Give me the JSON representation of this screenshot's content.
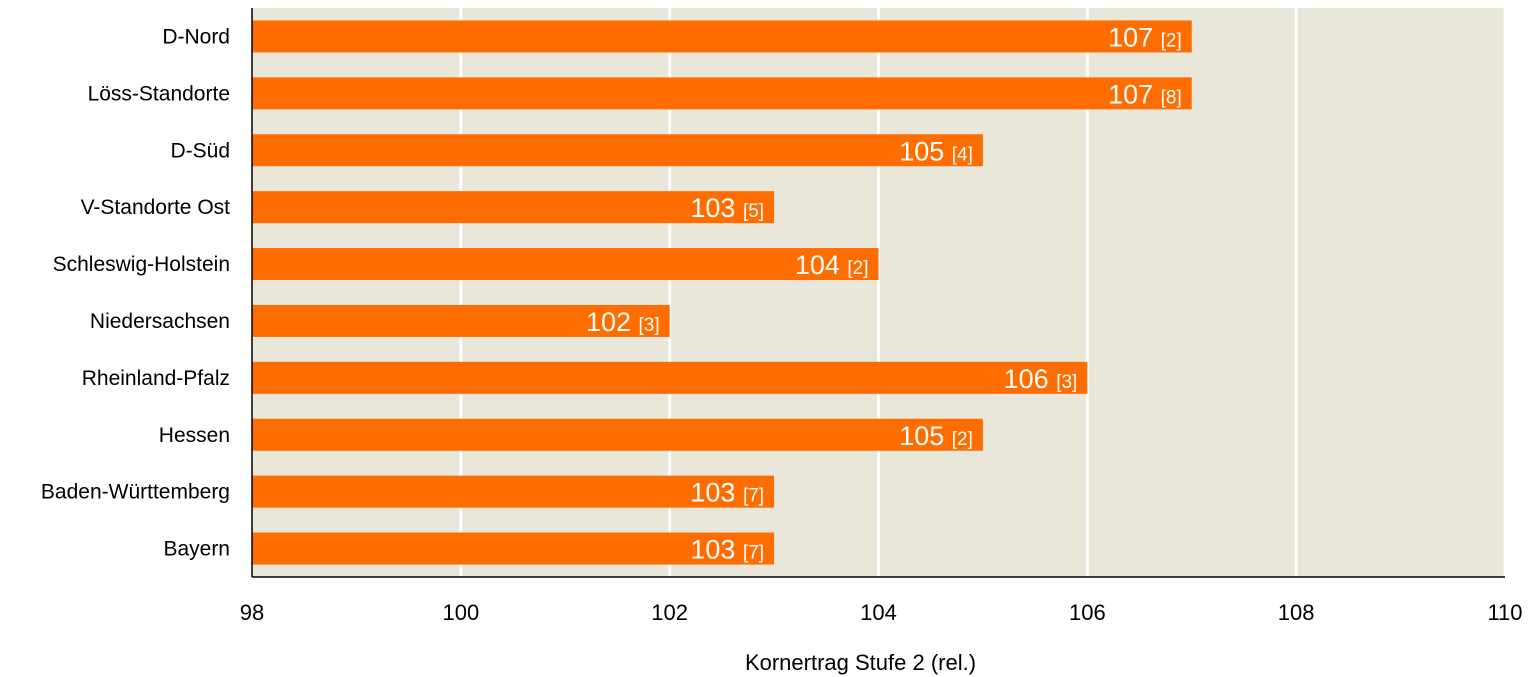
{
  "chart_data": {
    "type": "bar",
    "orientation": "horizontal",
    "categories": [
      "D-Nord",
      "Löss-Standorte",
      "D-Süd",
      "V-Standorte Ost",
      "Schleswig-Holstein",
      "Niedersachsen",
      "Rheinland-Pfalz",
      "Hessen",
      "Baden-Württemberg",
      "Bayern"
    ],
    "values": [
      107,
      107,
      105,
      103,
      104,
      102,
      106,
      105,
      103,
      103
    ],
    "counts": [
      2,
      8,
      4,
      5,
      2,
      3,
      3,
      2,
      7,
      7
    ],
    "count_labels": [
      "[2]",
      "[8]",
      "[4]",
      "[5]",
      "[2]",
      "[3]",
      "[3]",
      "[2]",
      "[7]",
      "[7]"
    ],
    "xlabel": "Kornertrag Stufe 2 (rel.)",
    "ylabel": "",
    "xlim": [
      98,
      110
    ],
    "xticks": [
      98,
      100,
      102,
      104,
      106,
      108,
      110
    ],
    "xtick_labels": [
      "98",
      "100",
      "102",
      "104",
      "106",
      "108",
      "110"
    ],
    "grid": "vertical",
    "legend": "none",
    "colors": {
      "bar": "#FF6D00",
      "plot_bg": "#E9E6DA",
      "grid": "#FFFFFF",
      "axis": "#000000"
    }
  }
}
